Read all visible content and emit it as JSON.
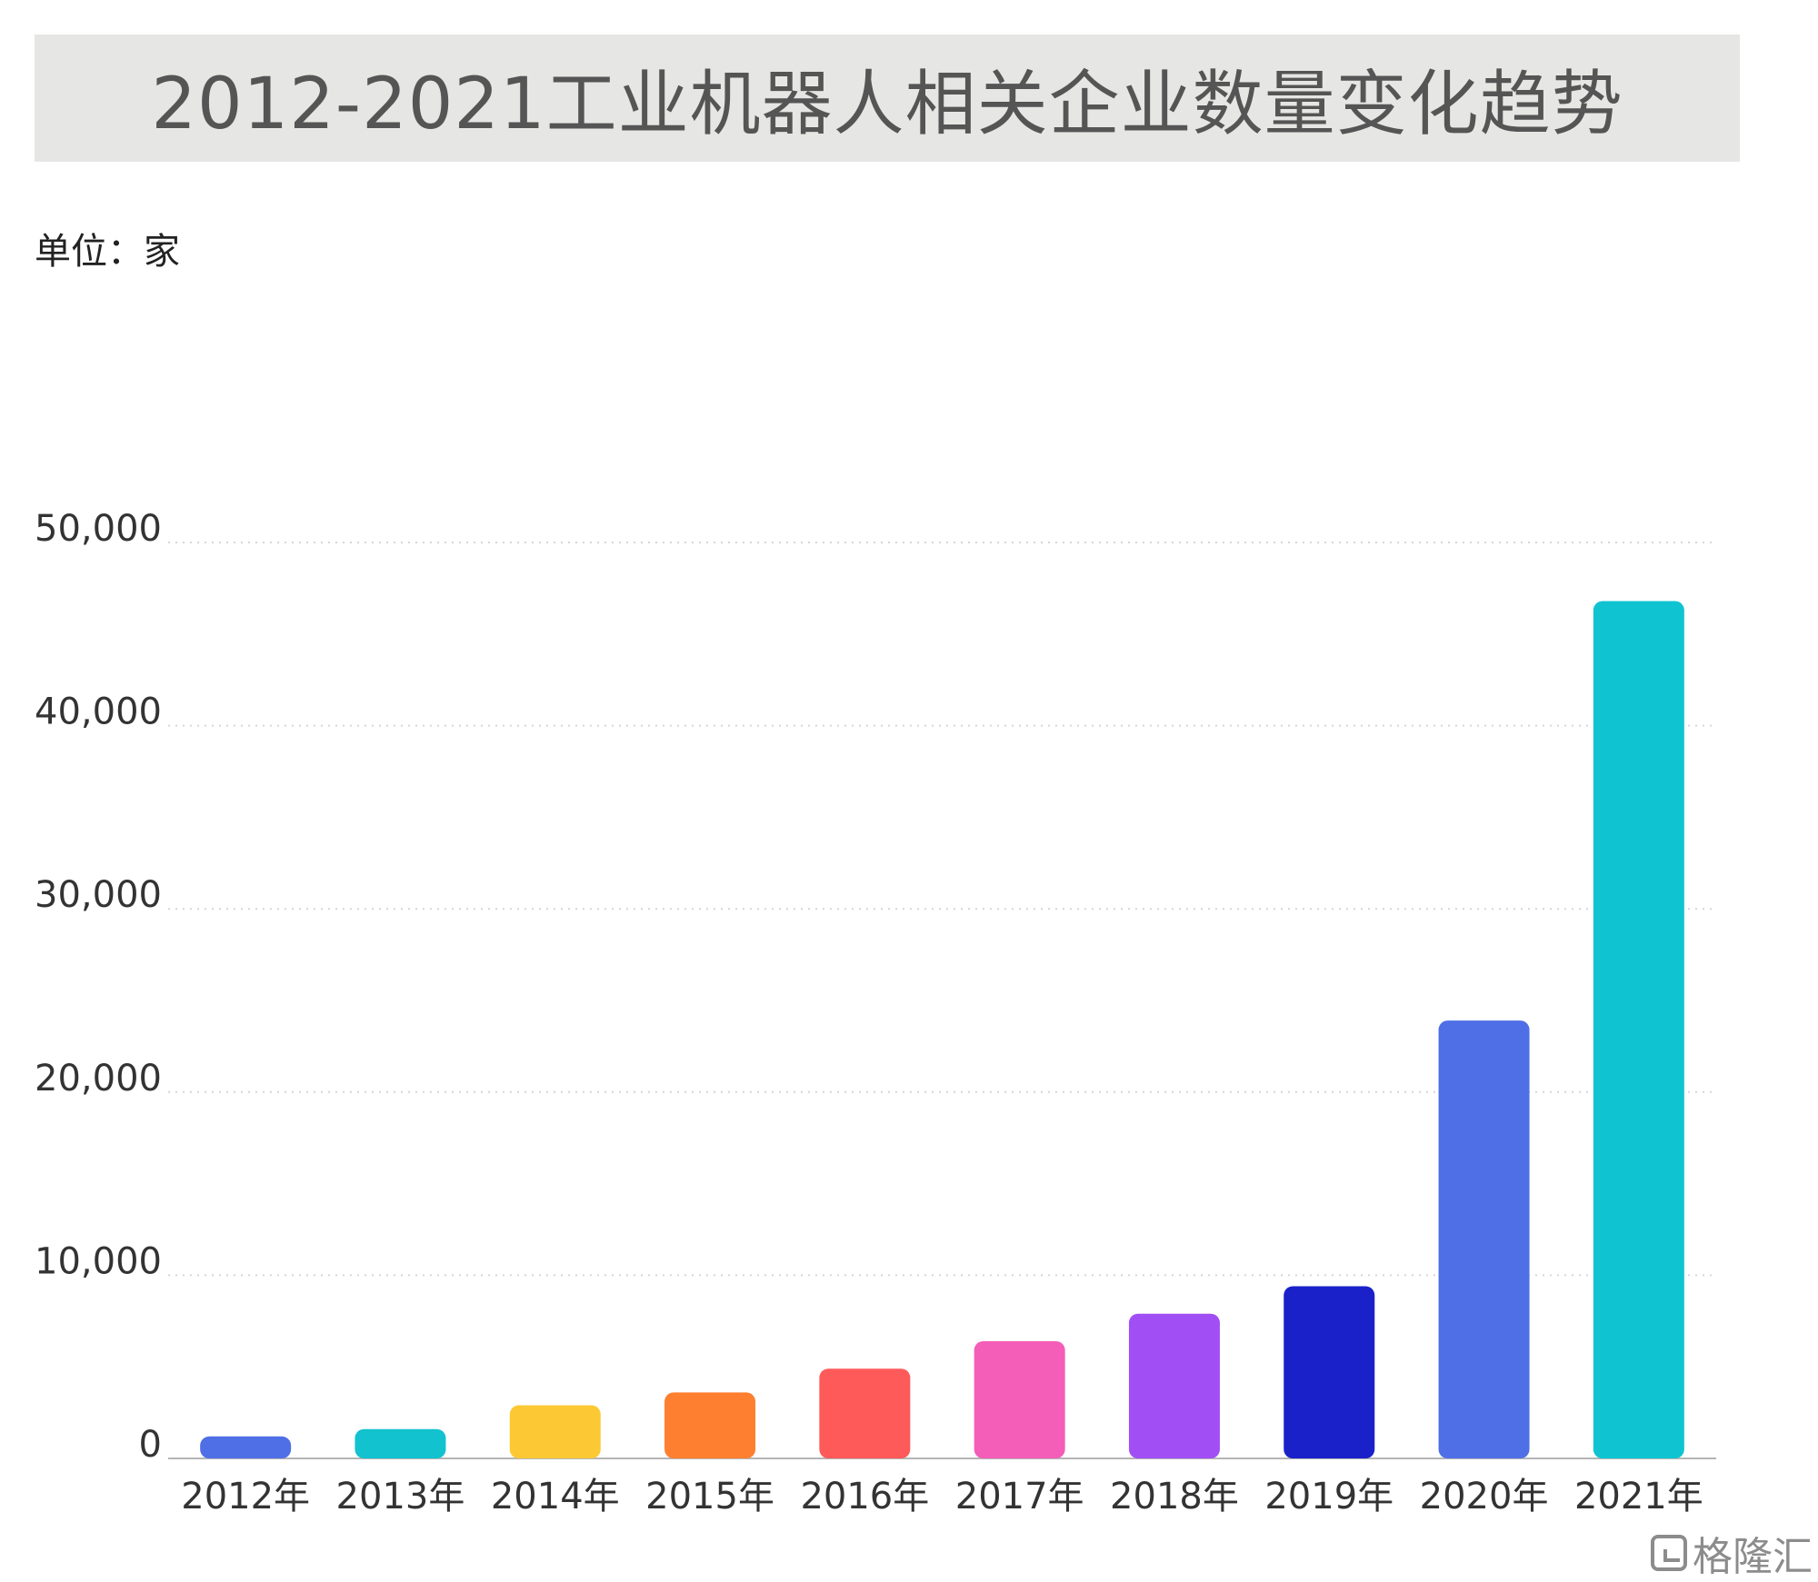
{
  "header": {
    "title": "2012-2021工业机器人相关企业数量变化趋势"
  },
  "unit": "单位：家",
  "watermark": {
    "text": "格隆汇",
    "icon": "brand-logo-icon"
  },
  "chart_data": {
    "type": "bar",
    "title": "2012-2021工业机器人相关企业数量变化趋势",
    "ylabel": "单位：家",
    "xlabel": "",
    "categories": [
      "2012年",
      "2013年",
      "2014年",
      "2015年",
      "2016年",
      "2017年",
      "2018年",
      "2019年",
      "2020年",
      "2021年"
    ],
    "values": [
      1200,
      1600,
      2900,
      3600,
      4900,
      6400,
      7900,
      9400,
      23900,
      46800
    ],
    "colors": [
      "#4f6fe6",
      "#12c2cf",
      "#fcc934",
      "#fe7f2f",
      "#fe5a5a",
      "#f45eb8",
      "#a14ef4",
      "#1a21c9",
      "#4f6fe6",
      "#0fc4d0"
    ],
    "ylim": [
      0,
      50000
    ],
    "yticks": [
      0,
      10000,
      20000,
      30000,
      40000,
      50000
    ],
    "ytick_labels": [
      "0",
      "10,000",
      "20,000",
      "30,000",
      "40,000",
      "50,000"
    ],
    "grid": true,
    "legend": "none"
  }
}
